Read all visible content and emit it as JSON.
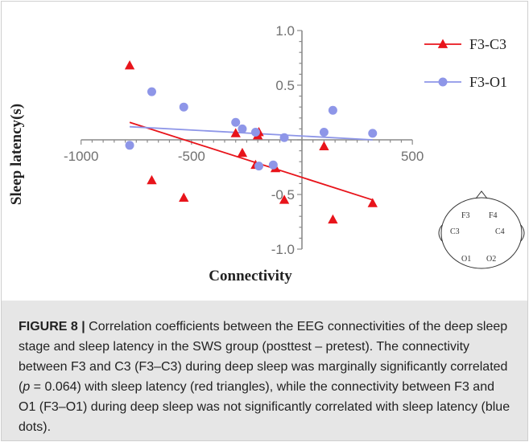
{
  "chart_data": {
    "type": "scatter",
    "title": "",
    "xlabel": "Connectivity",
    "ylabel": "Sleep latency(s)",
    "xlim": [
      -1000,
      500
    ],
    "ylim": [
      -1.0,
      1.0
    ],
    "x_ticks": [
      -1000,
      -500,
      500
    ],
    "x_tick_labels": [
      "-1000",
      "-500",
      "500"
    ],
    "y_ticks": [
      1.0,
      0.5,
      -0.5,
      -1.0
    ],
    "y_tick_labels": [
      "1.0",
      "0.5",
      "-0.5",
      "-1.0"
    ],
    "grid": false,
    "legend_position": "top-right",
    "series": [
      {
        "name": "F3-C3",
        "marker": "triangle",
        "color": "#e8141b",
        "points": [
          {
            "x": -780,
            "y": 0.68
          },
          {
            "x": -680,
            "y": -0.37
          },
          {
            "x": -535,
            "y": -0.53
          },
          {
            "x": -300,
            "y": 0.06
          },
          {
            "x": -270,
            "y": -0.12
          },
          {
            "x": -210,
            "y": -0.23
          },
          {
            "x": -200,
            "y": 0.04
          },
          {
            "x": -195,
            "y": 0.07
          },
          {
            "x": -120,
            "y": -0.26
          },
          {
            "x": -80,
            "y": -0.55
          },
          {
            "x": 100,
            "y": -0.06
          },
          {
            "x": 140,
            "y": -0.73
          },
          {
            "x": 320,
            "y": -0.58
          }
        ],
        "fit_line": {
          "x": [
            -780,
            320
          ],
          "y": [
            0.16,
            -0.55
          ]
        }
      },
      {
        "name": "F3-O1",
        "marker": "circle",
        "color": "#8e96e8",
        "points": [
          {
            "x": -780,
            "y": -0.05
          },
          {
            "x": -680,
            "y": 0.44
          },
          {
            "x": -535,
            "y": 0.3
          },
          {
            "x": -300,
            "y": 0.16
          },
          {
            "x": -270,
            "y": 0.1
          },
          {
            "x": -210,
            "y": 0.07
          },
          {
            "x": -195,
            "y": -0.24
          },
          {
            "x": -130,
            "y": -0.23
          },
          {
            "x": -80,
            "y": 0.02
          },
          {
            "x": 100,
            "y": 0.07
          },
          {
            "x": 140,
            "y": 0.27
          },
          {
            "x": 320,
            "y": 0.06
          }
        ],
        "fit_line": {
          "x": [
            -780,
            320
          ],
          "y": [
            0.12,
            0.0
          ]
        }
      }
    ],
    "inset_labels": [
      "F3",
      "F4",
      "C3",
      "C4",
      "O1",
      "O2"
    ]
  },
  "caption": {
    "label": "FIGURE 8 |",
    "text_before_p": " Correlation coefficients between the EEG connectivities of the deep sleep stage and sleep latency in the SWS group (posttest – pretest). The connectivity between F3 and C3 (F3–C3) during deep sleep was marginally significantly correlated (",
    "p_symbol": "p",
    "text_after_p": " = 0.064) with sleep latency (red triangles), while the connectivity between F3 and O1 (F3–O1) during deep sleep was not significantly correlated with sleep latency (blue dots)."
  }
}
